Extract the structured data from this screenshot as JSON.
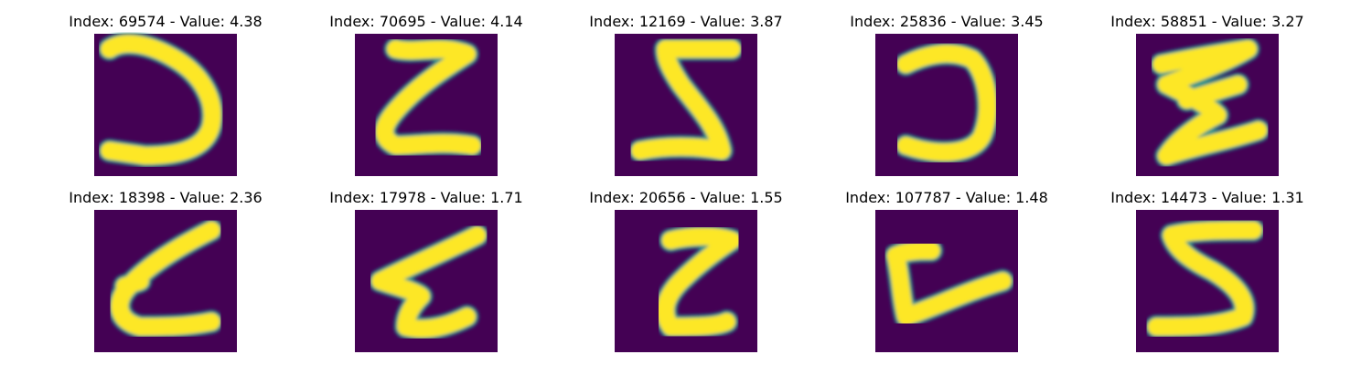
{
  "colors": {
    "background": "#440154",
    "foreground": "#fde725",
    "edge": "#21918c",
    "figure_background": "#ffffff"
  },
  "chart_data": {
    "type": "image-grid",
    "rows": 2,
    "cols": 5,
    "colormap": "viridis",
    "axes": "off",
    "panels": [
      {
        "index": 69574,
        "value": 4.38,
        "title": "Index: 69574 - Value: 4.38"
      },
      {
        "index": 70695,
        "value": 4.14,
        "title": "Index: 70695 - Value: 4.14"
      },
      {
        "index": 12169,
        "value": 3.87,
        "title": "Index: 12169 - Value: 3.87"
      },
      {
        "index": 25836,
        "value": 3.45,
        "title": "Index: 25836 - Value: 3.45"
      },
      {
        "index": 58851,
        "value": 3.27,
        "title": "Index: 58851 - Value: 3.27"
      },
      {
        "index": 18398,
        "value": 2.36,
        "title": "Index: 18398 - Value: 2.36"
      },
      {
        "index": 17978,
        "value": 1.71,
        "title": "Index: 17978 - Value: 1.71"
      },
      {
        "index": 20656,
        "value": 1.55,
        "title": "Index: 20656 - Value: 1.55"
      },
      {
        "index": 107787,
        "value": 1.48,
        "title": "Index: 107787 - Value: 1.48"
      },
      {
        "index": 14473,
        "value": 1.31,
        "title": "Index: 14473 - Value: 1.31"
      }
    ]
  }
}
